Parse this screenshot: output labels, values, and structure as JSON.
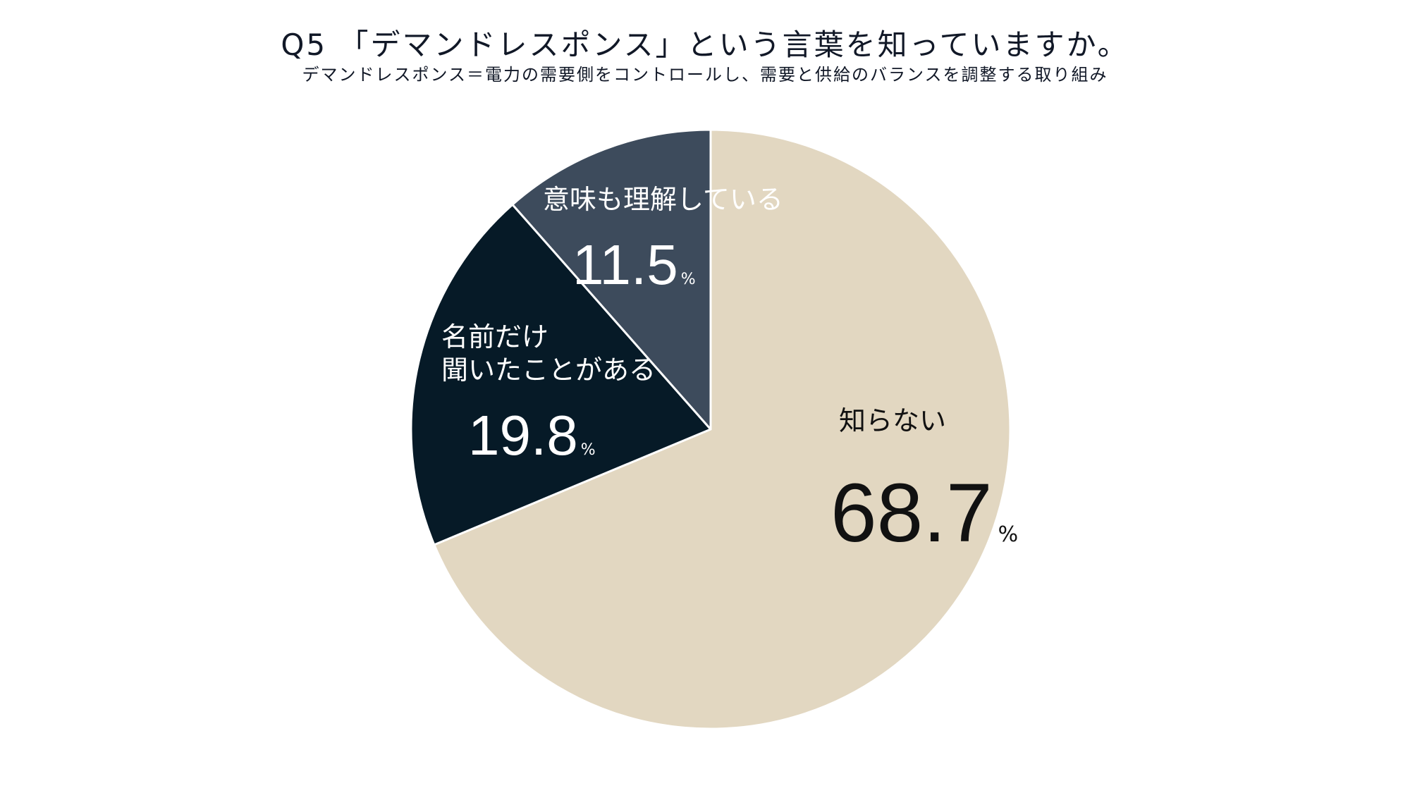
{
  "chart_data": {
    "type": "pie",
    "title": "Q5 「デマンドレスポンス」という言葉を知っていますか。",
    "subtitle": "デマンドレスポンス＝電力の需要側をコントロールし、需要と供給のバランスを調整する取り組み",
    "unit": "%",
    "start_angle_deg": 0,
    "direction": "clockwise",
    "slices": [
      {
        "name": "知らない",
        "label_lines": [
          "知らない"
        ],
        "value": 68.7,
        "display": "68.7",
        "color": "#e2d7c1",
        "text_color": "#111111"
      },
      {
        "name": "名前だけ聞いたことがある",
        "label_lines": [
          "名前だけ",
          "聞いたことがある"
        ],
        "value": 19.8,
        "display": "19.8",
        "color": "#061a27",
        "text_color": "#ffffff"
      },
      {
        "name": "意味も理解している",
        "label_lines": [
          "意味も理解している"
        ],
        "value": 11.5,
        "display": "11.5",
        "color": "#3d4b5c",
        "text_color": "#ffffff"
      }
    ]
  }
}
